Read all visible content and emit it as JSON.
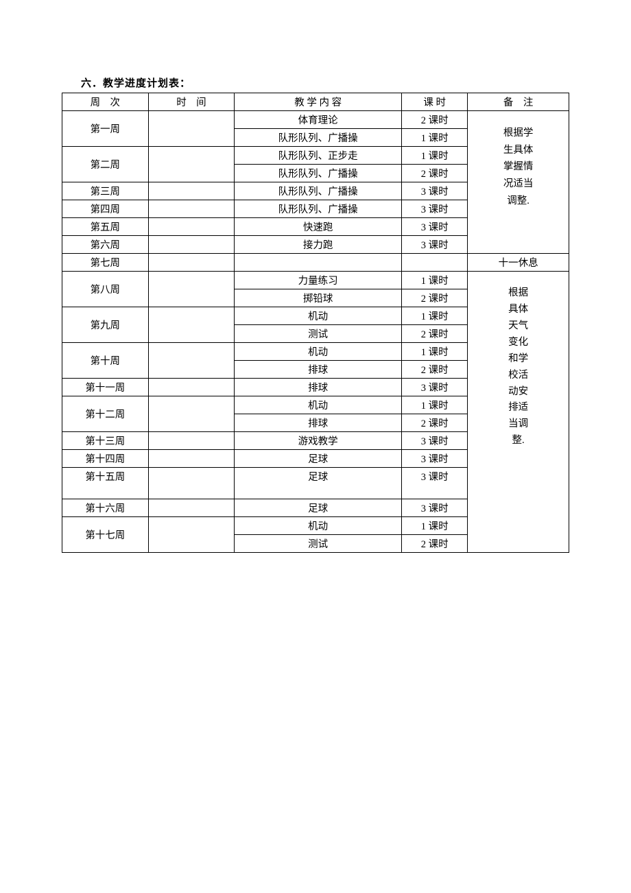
{
  "title": "六．教学进度计划表：",
  "headers": {
    "week": "周　次",
    "time": "时　间",
    "content": "教 学 内 容",
    "hours": "课 时",
    "note": "备　注"
  },
  "rows": [
    {
      "week": "第一周",
      "content": "体育理论",
      "hours": "2 课时",
      "rowspan": 2
    },
    {
      "content": "队形队列、广播操",
      "hours": "1 课时"
    },
    {
      "week": "第二周",
      "content": "队形队列、正步走",
      "hours": "1 课时",
      "rowspan": 2
    },
    {
      "content": "队形队列、广播操",
      "hours": "2 课时"
    },
    {
      "week": "第三周",
      "content": "队形队列、广播操",
      "hours": "3 课时"
    },
    {
      "week": "第四周",
      "content": "队形队列、广播操",
      "hours": "3 课时"
    },
    {
      "week": "第五周",
      "content": "快速跑",
      "hours": "3 课时"
    },
    {
      "week": "第六周",
      "content": "接力跑",
      "hours": "3 课时"
    }
  ],
  "note1_lines": [
    "根据学",
    "生具体",
    "掌握情",
    "况适当",
    "调整."
  ],
  "row_week7": {
    "week": "第七周",
    "content": "",
    "hours": "",
    "note": "十一休息"
  },
  "rows2": [
    {
      "week": "第八周",
      "content": "力量练习",
      "hours": "1 课时",
      "rowspan": 2
    },
    {
      "content": "掷铅球",
      "hours": "2 课时"
    },
    {
      "week": "第九周",
      "content": "机动",
      "hours": "1 课时",
      "rowspan": 2
    },
    {
      "content": "测试",
      "hours": "2 课时"
    },
    {
      "week": "第十周",
      "content": "机动",
      "hours": "1 课时",
      "rowspan": 2
    },
    {
      "content": "排球",
      "hours": "2 课时"
    },
    {
      "week": "第十一周",
      "content": "排球",
      "hours": "3 课时"
    },
    {
      "week": "第十二周",
      "content": "机动",
      "hours": "1 课时",
      "rowspan": 2
    },
    {
      "content": "排球",
      "hours": "2 课时"
    },
    {
      "week": "第十三周",
      "content": "游戏教学",
      "hours": "3 课时"
    },
    {
      "week": "第十四周",
      "content": "足球",
      "hours": "3 课时"
    },
    {
      "week": "第十五周",
      "content": "足球",
      "hours": "3 课时",
      "tall": true
    },
    {
      "week": "第十六周",
      "content": "足球",
      "hours": "3 课时"
    },
    {
      "week": "第十七周",
      "content": "机动",
      "hours": "1 课时",
      "rowspan": 2
    },
    {
      "content": "测试",
      "hours": "2 课时"
    }
  ],
  "note2_lines": [
    "根据",
    "具体",
    "天气",
    "变化",
    "和学",
    "校活",
    "动安",
    "排适",
    "当调",
    "整."
  ]
}
